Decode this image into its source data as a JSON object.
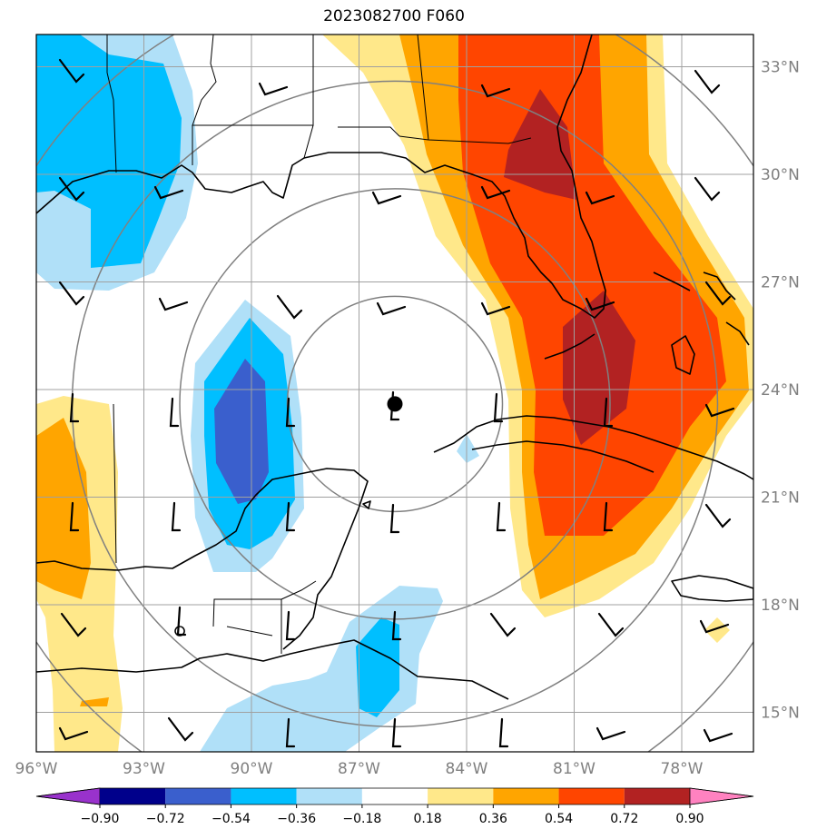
{
  "title": "2023082700 F060",
  "map": {
    "lon_range": [
      -96,
      -76
    ],
    "lat_range": [
      13.9,
      33.9
    ],
    "lon_ticks": [
      -96,
      -93,
      -90,
      -87,
      -84,
      -81,
      -78
    ],
    "lon_labels": [
      "96°W",
      "93°W",
      "90°W",
      "87°W",
      "84°W",
      "81°W",
      "78°W"
    ],
    "lat_ticks": [
      15,
      18,
      21,
      24,
      27,
      30,
      33
    ],
    "lat_labels": [
      "15°N",
      "18°N",
      "21°N",
      "24°N",
      "27°N",
      "30°N",
      "33°N"
    ],
    "center": {
      "lon": -86.0,
      "lat": 23.6
    },
    "range_ring_radius_deg": [
      3,
      6,
      9,
      12
    ],
    "gridlines": true
  },
  "colorbar": {
    "levels": [
      -0.9,
      -0.72,
      -0.54,
      -0.36,
      -0.18,
      0.18,
      0.36,
      0.54,
      0.72,
      0.9
    ],
    "labels": [
      "−0.90",
      "−0.72",
      "−0.54",
      "−0.36",
      "−0.18",
      "0.18",
      "0.36",
      "0.54",
      "0.72",
      "0.90"
    ],
    "colors": [
      "#9932cc",
      "#00008b",
      "#3a5fcd",
      "#00bfff",
      "#b0e0f8",
      "#ffffff",
      "#ffe88a",
      "#ffa500",
      "#ff4500",
      "#b22222",
      "#ff82c0"
    ]
  }
}
